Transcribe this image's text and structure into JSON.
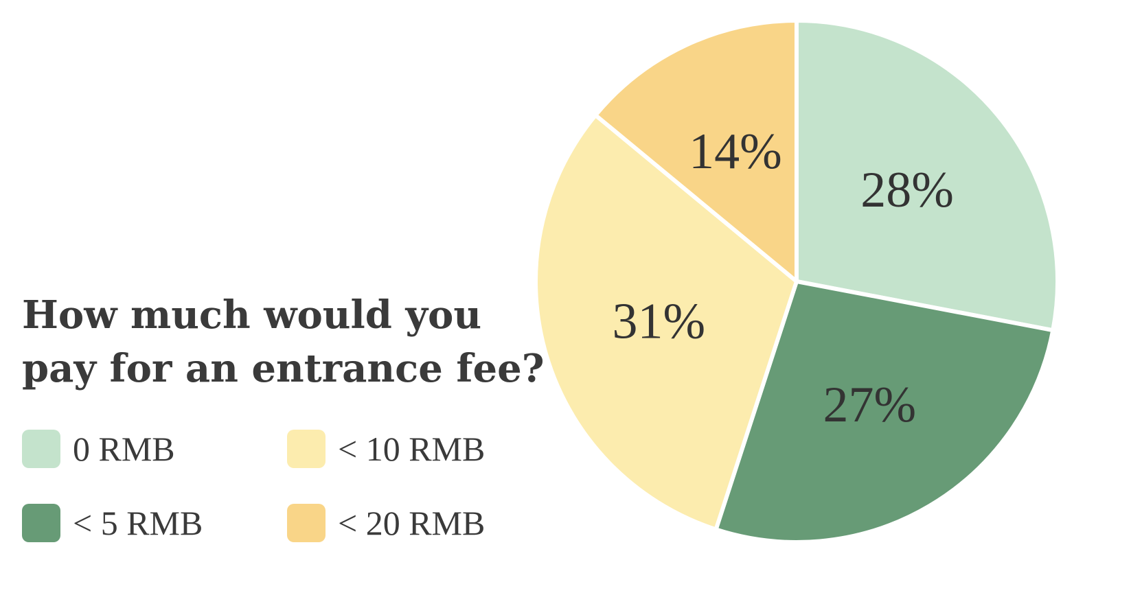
{
  "chart_data": {
    "type": "pie",
    "title_lines": [
      "How much would you",
      "pay for an entrance fee?"
    ],
    "categories": [
      "0 RMB",
      "< 5 RMB",
      "< 10 RMB",
      "< 20 RMB"
    ],
    "values": [
      28,
      27,
      31,
      14
    ],
    "value_labels": [
      "28%",
      "27%",
      "31%",
      "14%"
    ],
    "colors": [
      "#c4e3cc",
      "#679b76",
      "#fcecae",
      "#f9d588"
    ],
    "legend_placement": "bottom-left"
  }
}
